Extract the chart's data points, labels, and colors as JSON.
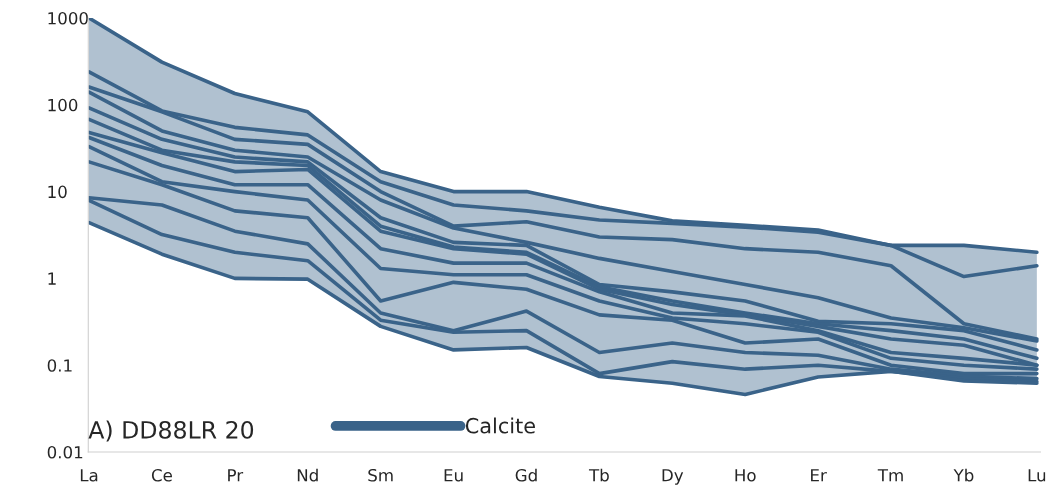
{
  "chart_data": {
    "type": "line",
    "title": "A) DD88LR 20",
    "categories": [
      "La",
      "Ce",
      "Pr",
      "Nd",
      "Sm",
      "Eu",
      "Gd",
      "Tb",
      "Dy",
      "Ho",
      "Er",
      "Tm",
      "Yb",
      "Lu"
    ],
    "series": [
      {
        "name": "Calcite",
        "color": "#3a6389",
        "values": [
          1000,
          310,
          135,
          83,
          17,
          10,
          10,
          6.6,
          4.6,
          4.1,
          3.6,
          2.4,
          2.4,
          2.0
        ],
        "lower": [
          4.4,
          1.9,
          1.0,
          0.98,
          0.28,
          0.15,
          0.16,
          0.074,
          0.062,
          0.046,
          0.073,
          0.085,
          0.066,
          0.062
        ],
        "upper": [
          1000,
          310,
          135,
          83,
          17,
          10,
          10,
          6.6,
          4.6,
          4.1,
          3.6,
          2.4,
          2.4,
          2.0
        ]
      },
      {
        "color": "#3a6389",
        "values": [
          240,
          85,
          55,
          45,
          13,
          7,
          6,
          4.7,
          4.3,
          3.9,
          3.4,
          2.4,
          1.05,
          1.4
        ]
      },
      {
        "color": "#3a6389",
        "values": [
          160,
          83,
          40,
          35,
          10,
          4,
          4.5,
          3.0,
          2.8,
          2.2,
          2.0,
          1.4,
          0.3,
          0.2
        ]
      },
      {
        "color": "#3a6389",
        "values": [
          140,
          50,
          30,
          25,
          8,
          3.8,
          2.6,
          1.7,
          1.2,
          0.85,
          0.6,
          0.35,
          0.27,
          0.19
        ]
      },
      {
        "color": "#3a6389",
        "values": [
          92,
          40,
          25,
          22,
          5,
          2.6,
          2.4,
          0.85,
          0.7,
          0.55,
          0.32,
          0.3,
          0.25,
          0.15
        ]
      },
      {
        "color": "#3a6389",
        "values": [
          68,
          30,
          22,
          20,
          4,
          2.3,
          2.0,
          0.8,
          0.55,
          0.4,
          0.3,
          0.25,
          0.2,
          0.12
        ]
      },
      {
        "color": "#3a6389",
        "values": [
          48,
          28,
          17,
          18,
          3.5,
          2.2,
          1.9,
          0.75,
          0.5,
          0.38,
          0.28,
          0.2,
          0.17,
          0.1
        ]
      },
      {
        "color": "#3a6389",
        "values": [
          42,
          20,
          12,
          12,
          2.2,
          1.5,
          1.5,
          0.7,
          0.4,
          0.37,
          0.25,
          0.14,
          0.12,
          0.1
        ]
      },
      {
        "color": "#3a6389",
        "values": [
          33,
          13,
          10,
          8,
          1.3,
          1.1,
          1.1,
          0.55,
          0.35,
          0.3,
          0.24,
          0.12,
          0.1,
          0.09
        ]
      },
      {
        "color": "#3a6389",
        "values": [
          22,
          12,
          6,
          5,
          0.55,
          0.9,
          0.75,
          0.38,
          0.33,
          0.18,
          0.2,
          0.1,
          0.08,
          0.08
        ]
      },
      {
        "color": "#3a6389",
        "values": [
          8.5,
          7,
          3.5,
          2.5,
          0.4,
          0.25,
          0.42,
          0.14,
          0.18,
          0.14,
          0.13,
          0.09,
          0.075,
          0.07
        ]
      },
      {
        "color": "#3a6389",
        "values": [
          7.9,
          3.2,
          2,
          1.6,
          0.33,
          0.24,
          0.25,
          0.08,
          0.11,
          0.09,
          0.1,
          0.085,
          0.07,
          0.065
        ]
      },
      {
        "color": "#3a6389",
        "values": [
          4.4,
          1.9,
          1.0,
          0.98,
          0.28,
          0.15,
          0.16,
          0.074,
          0.062,
          0.046,
          0.073,
          0.085,
          0.066,
          0.062
        ]
      }
    ],
    "log": "y",
    "ylim": [
      0.01,
      1000
    ],
    "yticks": [
      0.01,
      0.1,
      1,
      10,
      100,
      1000
    ],
    "legend": "bottom left",
    "grid": false,
    "marker": "none",
    "line_style": "solid"
  }
}
